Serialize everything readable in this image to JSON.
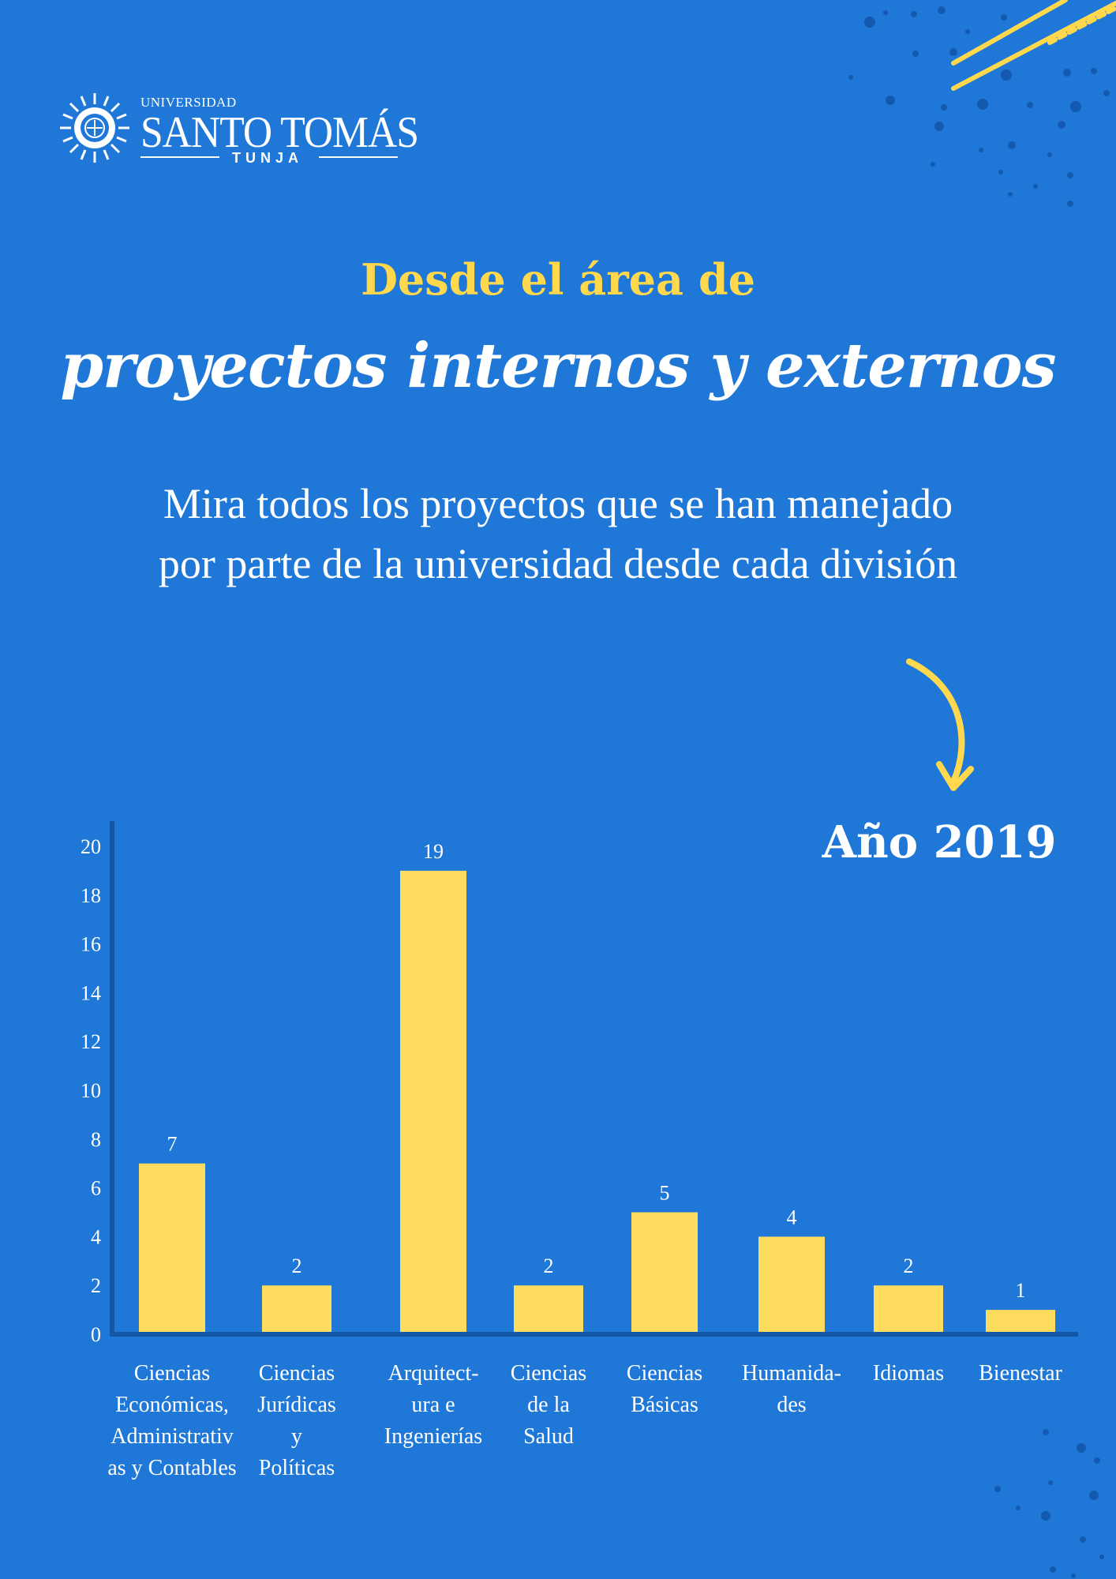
{
  "logo": {
    "top_text": "UNIVERSIDAD",
    "name": "SANTO TOMÁS",
    "city": "TUNJA"
  },
  "heading": {
    "line1": "Desde el área de",
    "line2": "proyectos internos y externos"
  },
  "subtitle": "Mira todos los proyectos que se han manejado por parte de la universidad desde cada división",
  "year_label": "Año 2019",
  "colors": {
    "background": "#1f78d8",
    "bar": "#ffdc5e",
    "accent": "#ffd84d",
    "axis": "#1456a8"
  },
  "chart_data": {
    "type": "bar",
    "categories": [
      "Ciencias\nEconómicas,\nAdministrativ\nas y Contables",
      "Ciencias\nJurídicas\ny\nPolíticas",
      "Arquitect-\nura e\nIngenierías",
      "Ciencias\nde la\nSalud",
      "Ciencias\nBásicas",
      "Humanida-\ndes",
      "Idiomas",
      "Bienestar"
    ],
    "values": [
      7,
      2,
      19,
      2,
      5,
      4,
      2,
      1
    ],
    "value_labels": [
      "7",
      "2",
      "19",
      "2",
      "5",
      "4",
      "2",
      "1"
    ],
    "ylim": [
      0,
      20
    ],
    "yticks": [
      "0",
      "2",
      "4",
      "6",
      "8",
      "10",
      "12",
      "14",
      "16",
      "18",
      "20"
    ],
    "grid": false
  }
}
